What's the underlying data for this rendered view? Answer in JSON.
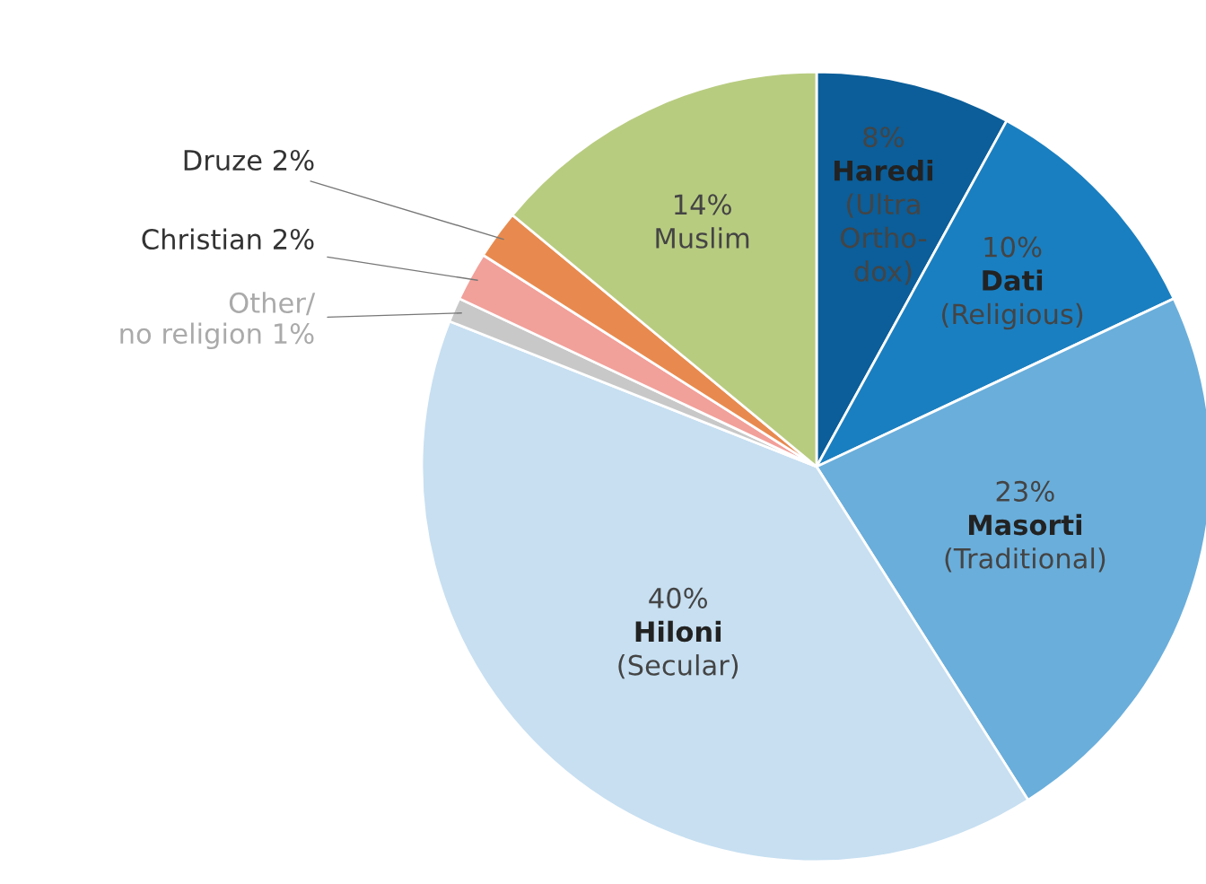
{
  "chart_data": {
    "type": "pie",
    "categories": [
      "Haredi\n(Ultra\nOrtho-\ndox)",
      "Dati\n(Religious)",
      "Masorti\n(Traditional)",
      "Hiloni\n(Secular)",
      "Other/\nno religion",
      "Christian",
      "Druze",
      "Muslim"
    ],
    "values": [
      8,
      10,
      23,
      40,
      1,
      2,
      2,
      14
    ],
    "value_labels": [
      "8%",
      "10%",
      "23%",
      "40%",
      "1%",
      "2%",
      "2%",
      "14%"
    ],
    "colors": [
      "#0b5e99",
      "#1a7fc0",
      "#6aaedb",
      "#c7dff1",
      "#c8c8c8",
      "#f2a09a",
      "#e88a4f",
      "#b8cc80"
    ]
  }
}
